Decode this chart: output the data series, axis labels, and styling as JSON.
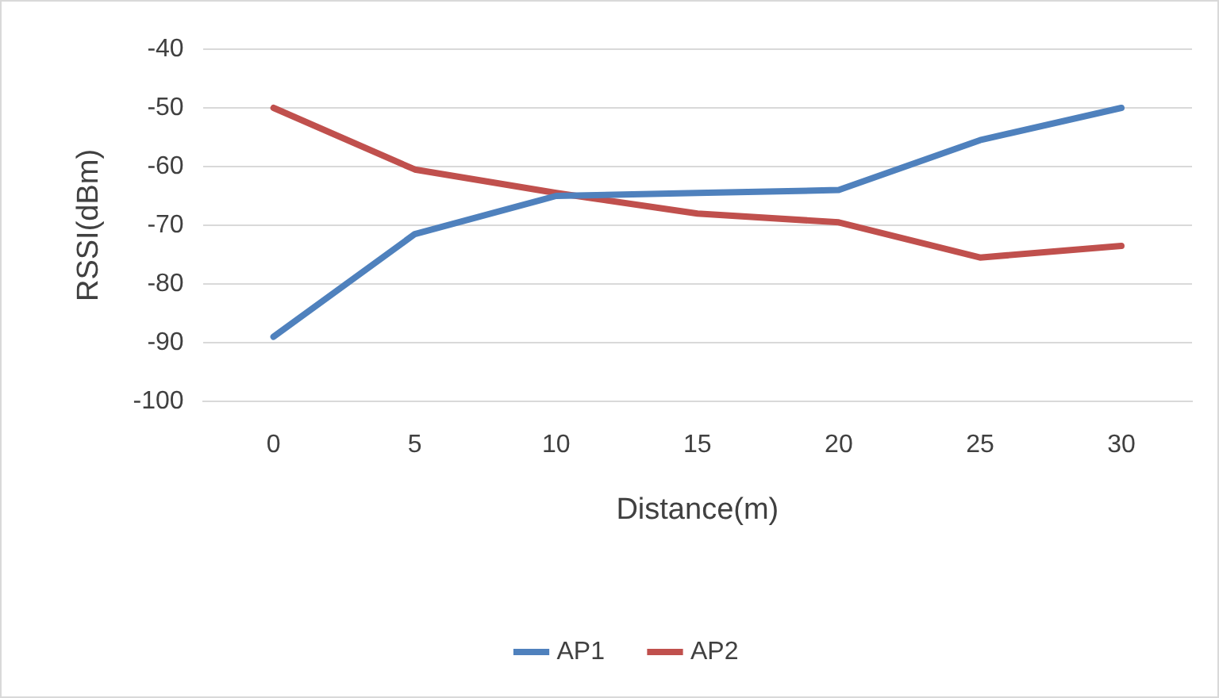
{
  "chart_data": {
    "type": "line",
    "xlabel": "Distance(m)",
    "ylabel": "RSSI(dBm)",
    "categories": [
      "0",
      "5",
      "10",
      "15",
      "20",
      "25",
      "30"
    ],
    "series": [
      {
        "name": "AP1",
        "color": "#4f81bd",
        "values": [
          -89,
          -71.5,
          -65,
          -64.5,
          -64,
          -55.5,
          -50
        ]
      },
      {
        "name": "AP2",
        "color": "#c0504d",
        "values": [
          -50,
          -60.5,
          -64.5,
          -68,
          -69.5,
          -75.5,
          -73.5
        ]
      }
    ],
    "ylim": [
      -100,
      -40
    ],
    "yticks": [
      -100,
      -90,
      -80,
      -70,
      -60,
      -50,
      -40
    ],
    "grid": "y",
    "legend": "bottom",
    "marker": "none",
    "line_style": "solid"
  }
}
